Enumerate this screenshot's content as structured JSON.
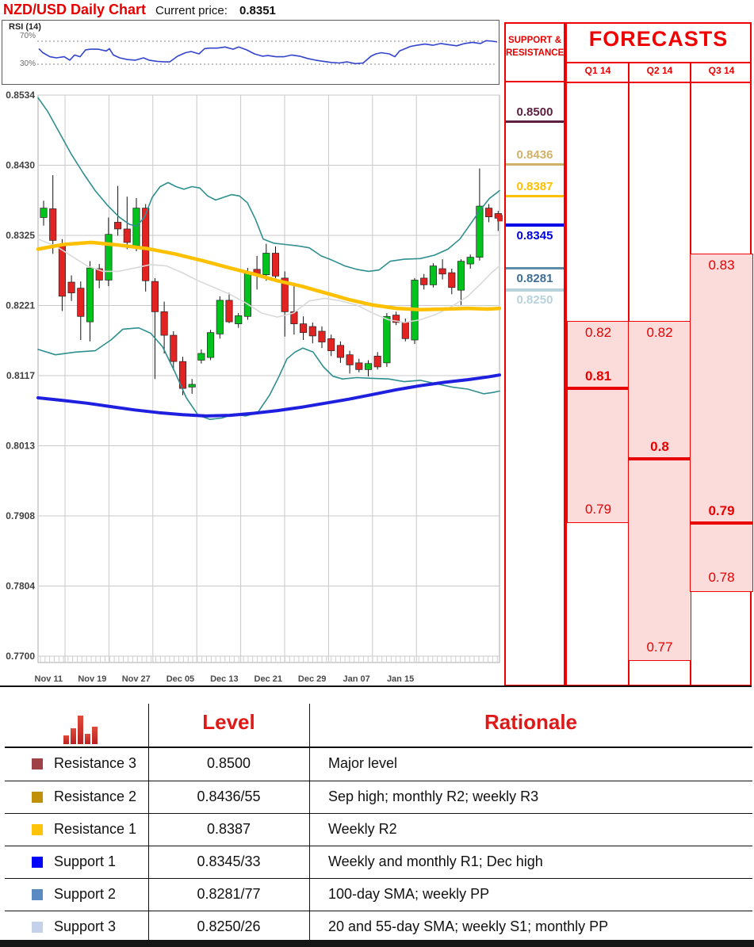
{
  "header": {
    "title": "NZD/USD Daily Chart",
    "current_price_label": "Current price:",
    "current_price": "0.8351"
  },
  "rsi_panel": {
    "label": "RSI (14)",
    "upper": "70%",
    "lower": "30%"
  },
  "support_resistance": {
    "header_line1": "SUPPORT &",
    "header_line2": "RESISTANCE",
    "levels": [
      {
        "value": "0.8500",
        "price": 0.85,
        "color": "#5c2040",
        "side": "resistance"
      },
      {
        "value": "0.8436",
        "price": 0.8436,
        "color": "#d0b169",
        "side": "resistance"
      },
      {
        "value": "0.8387",
        "price": 0.8387,
        "color": "#ffc000",
        "side": "resistance"
      },
      {
        "value": "0.8345",
        "price": 0.8345,
        "color": "#0000e6",
        "side": "support"
      },
      {
        "value": "0.8281",
        "price": 0.8281,
        "color": "#4f7ca8",
        "side": "support"
      },
      {
        "value": "0.8250",
        "price": 0.825,
        "color": "#b7d2da",
        "side": "support"
      }
    ]
  },
  "forecasts": {
    "title": "FORECASTS",
    "columns": [
      {
        "label": "Q1 14",
        "high_label": "0.82",
        "point_label": "0.81",
        "low_label": "0.79",
        "high": 0.82,
        "point": 0.81,
        "low": 0.79
      },
      {
        "label": "Q2 14",
        "high_label": "0.82",
        "point_label": "0.8",
        "low_label": "0.77",
        "high": 0.82,
        "point": 0.8,
        "low": 0.77
      },
      {
        "label": "Q3 14",
        "high_label": "0.83",
        "point_label": "0.79",
        "low_label": "0.78",
        "high": 0.83,
        "point": 0.79,
        "low": 0.78
      }
    ]
  },
  "table": {
    "level_header": "Level",
    "rationale_header": "Rationale",
    "rows": [
      {
        "swatch": "#9e4247",
        "label": "Resistance 3",
        "level": "0.8500",
        "rationale": "Major level"
      },
      {
        "swatch": "#c09008",
        "label": "Resistance 2",
        "level": "0.8436/55",
        "rationale": "Sep high; monthly R2; weekly R3"
      },
      {
        "swatch": "#ffc40a",
        "label": "Resistance 1",
        "level": "0.8387",
        "rationale": "Weekly R2"
      },
      {
        "swatch": "#0000ff",
        "label": "Support 1",
        "level": "0.8345/33",
        "rationale": "Weekly  and monthly R1; Dec high"
      },
      {
        "swatch": "#5b8ac2",
        "label": "Support 2",
        "level": "0.8281/77",
        "rationale": "100-day SMA; weekly PP"
      },
      {
        "swatch": "#c3d2ea",
        "label": "Support 3",
        "level": "0.8250/26",
        "rationale": "20 and 55-day SMA; weekly S1; monthly PP"
      }
    ]
  },
  "chart_data": {
    "type": "candlestick",
    "title": "NZD/USD Daily Chart",
    "current_price": 0.8351,
    "ylim": [
      0.77,
      0.8534
    ],
    "grid": true,
    "y_ticks": [
      "0.8534",
      "0.8430",
      "0.8325",
      "0.8221",
      "0.8117",
      "0.8013",
      "0.7908",
      "0.7804",
      "0.7700"
    ],
    "x_ticks": [
      "Nov 11",
      "Nov 19",
      "Nov 27",
      "Dec 05",
      "Dec 13",
      "Dec 21",
      "Dec 29",
      "Jan 07",
      "Jan 15"
    ],
    "colors": {
      "up": "#00c41d",
      "down": "#e32222",
      "band": "#2f8f8f",
      "ma_orange": "#ffc000",
      "ma_gray": "#d9d9d9",
      "ma_blue": "#1f1fe0"
    },
    "candles": [
      [
        0.8352,
        0.8377,
        0.834,
        0.8366
      ],
      [
        0.8365,
        0.8415,
        0.8298,
        0.8318
      ],
      [
        0.8312,
        0.832,
        0.8213,
        0.8235
      ],
      [
        0.8256,
        0.8266,
        0.8228,
        0.824
      ],
      [
        0.8247,
        0.8257,
        0.817,
        0.8205
      ],
      [
        0.8197,
        0.8287,
        0.8168,
        0.8277
      ],
      [
        0.8276,
        0.8283,
        0.8247,
        0.8259
      ],
      [
        0.8259,
        0.8352,
        0.825,
        0.8327
      ],
      [
        0.8345,
        0.8399,
        0.8325,
        0.8335
      ],
      [
        0.8335,
        0.8383,
        0.8305,
        0.8315
      ],
      [
        0.831,
        0.8381,
        0.8302,
        0.8366
      ],
      [
        0.8366,
        0.8372,
        0.8242,
        0.8258
      ],
      [
        0.8257,
        0.8262,
        0.8112,
        0.8212
      ],
      [
        0.8212,
        0.8227,
        0.815,
        0.8177
      ],
      [
        0.8177,
        0.8183,
        0.8125,
        0.8138
      ],
      [
        0.8138,
        0.8145,
        0.8088,
        0.8098
      ],
      [
        0.81,
        0.8112,
        0.809,
        0.8104
      ],
      [
        0.814,
        0.8156,
        0.8135,
        0.815
      ],
      [
        0.8144,
        0.8185,
        0.814,
        0.8181
      ],
      [
        0.8179,
        0.8235,
        0.8172,
        0.8229
      ],
      [
        0.8229,
        0.824,
        0.8195,
        0.8197
      ],
      [
        0.8194,
        0.821,
        0.8188,
        0.8206
      ],
      [
        0.8205,
        0.8277,
        0.82,
        0.8269
      ],
      [
        0.8275,
        0.8295,
        0.8245,
        0.8267
      ],
      [
        0.8267,
        0.8313,
        0.8258,
        0.8299
      ],
      [
        0.8299,
        0.8309,
        0.8262,
        0.8265
      ],
      [
        0.8262,
        0.8272,
        0.8175,
        0.8212
      ],
      [
        0.8212,
        0.825,
        0.8178,
        0.8194
      ],
      [
        0.8194,
        0.8205,
        0.817,
        0.8181
      ],
      [
        0.819,
        0.8196,
        0.8165,
        0.8176
      ],
      [
        0.8183,
        0.819,
        0.8158,
        0.8167
      ],
      [
        0.8172,
        0.8178,
        0.8146,
        0.8154
      ],
      [
        0.8162,
        0.8168,
        0.8136,
        0.8144
      ],
      [
        0.8148,
        0.8154,
        0.812,
        0.8133
      ],
      [
        0.8136,
        0.8142,
        0.8122,
        0.8126
      ],
      [
        0.8126,
        0.814,
        0.8116,
        0.8135
      ],
      [
        0.8146,
        0.8152,
        0.8126,
        0.813
      ],
      [
        0.8136,
        0.821,
        0.813,
        0.8205
      ],
      [
        0.8207,
        0.8212,
        0.8192,
        0.8196
      ],
      [
        0.8196,
        0.8202,
        0.8168,
        0.8172
      ],
      [
        0.817,
        0.8262,
        0.8164,
        0.8259
      ],
      [
        0.8262,
        0.8268,
        0.8245,
        0.8252
      ],
      [
        0.8252,
        0.8284,
        0.8248,
        0.828
      ],
      [
        0.8276,
        0.829,
        0.826,
        0.8268
      ],
      [
        0.827,
        0.8276,
        0.8238,
        0.8248
      ],
      [
        0.8244,
        0.829,
        0.8222,
        0.8287
      ],
      [
        0.8283,
        0.8297,
        0.8276,
        0.8293
      ],
      [
        0.8293,
        0.8425,
        0.8288,
        0.8369
      ],
      [
        0.8366,
        0.8372,
        0.8345,
        0.8353
      ],
      [
        0.8358,
        0.8362,
        0.8332,
        0.8351
      ]
    ],
    "overlays": {
      "ma_blue": [
        [
          48,
          0.8084
        ],
        [
          80,
          0.808
        ],
        [
          110,
          0.8076
        ],
        [
          140,
          0.8071
        ],
        [
          170,
          0.8066
        ],
        [
          200,
          0.8062
        ],
        [
          230,
          0.8059
        ],
        [
          260,
          0.8057
        ],
        [
          290,
          0.8058
        ],
        [
          320,
          0.8061
        ],
        [
          350,
          0.8065
        ],
        [
          380,
          0.807
        ],
        [
          410,
          0.8076
        ],
        [
          440,
          0.8082
        ],
        [
          470,
          0.8089
        ],
        [
          500,
          0.8096
        ],
        [
          530,
          0.8102
        ],
        [
          560,
          0.8107
        ],
        [
          590,
          0.8111
        ],
        [
          615,
          0.8115
        ],
        [
          630,
          0.8118
        ]
      ],
      "upper_band": [
        [
          48,
          0.853
        ],
        [
          60,
          0.851
        ],
        [
          75,
          0.8478
        ],
        [
          90,
          0.8446
        ],
        [
          105,
          0.8418
        ],
        [
          120,
          0.8392
        ],
        [
          135,
          0.8371
        ],
        [
          150,
          0.8353
        ],
        [
          163,
          0.8342
        ],
        [
          172,
          0.8339
        ],
        [
          182,
          0.8352
        ],
        [
          192,
          0.8382
        ],
        [
          202,
          0.8398
        ],
        [
          212,
          0.8404
        ],
        [
          222,
          0.8398
        ],
        [
          232,
          0.8394
        ],
        [
          242,
          0.8398
        ],
        [
          252,
          0.8396
        ],
        [
          262,
          0.8384
        ],
        [
          272,
          0.8378
        ],
        [
          282,
          0.8382
        ],
        [
          292,
          0.8386
        ],
        [
          302,
          0.8384
        ],
        [
          312,
          0.8374
        ],
        [
          322,
          0.835
        ],
        [
          332,
          0.832
        ],
        [
          345,
          0.8314
        ],
        [
          360,
          0.8312
        ],
        [
          375,
          0.831
        ],
        [
          390,
          0.8307
        ],
        [
          405,
          0.8295
        ],
        [
          420,
          0.8288
        ],
        [
          435,
          0.828
        ],
        [
          450,
          0.8275
        ],
        [
          465,
          0.8272
        ],
        [
          478,
          0.8274
        ],
        [
          492,
          0.8287
        ],
        [
          510,
          0.829
        ],
        [
          530,
          0.8291
        ],
        [
          548,
          0.8296
        ],
        [
          565,
          0.8305
        ],
        [
          580,
          0.832
        ],
        [
          592,
          0.834
        ],
        [
          605,
          0.8362
        ],
        [
          617,
          0.838
        ],
        [
          630,
          0.8392
        ]
      ],
      "lower_band": [
        [
          48,
          0.8156
        ],
        [
          70,
          0.8148
        ],
        [
          95,
          0.8152
        ],
        [
          120,
          0.8154
        ],
        [
          140,
          0.817
        ],
        [
          155,
          0.8186
        ],
        [
          175,
          0.8188
        ],
        [
          190,
          0.818
        ],
        [
          205,
          0.816
        ],
        [
          220,
          0.8124
        ],
        [
          235,
          0.8084
        ],
        [
          250,
          0.8058
        ],
        [
          265,
          0.8052
        ],
        [
          280,
          0.8054
        ],
        [
          295,
          0.806
        ],
        [
          310,
          0.8057
        ],
        [
          325,
          0.8062
        ],
        [
          340,
          0.8088
        ],
        [
          352,
          0.8116
        ],
        [
          362,
          0.8142
        ],
        [
          372,
          0.8152
        ],
        [
          382,
          0.8158
        ],
        [
          395,
          0.8152
        ],
        [
          408,
          0.813
        ],
        [
          420,
          0.8116
        ],
        [
          432,
          0.8112
        ],
        [
          450,
          0.8114
        ],
        [
          470,
          0.8113
        ],
        [
          490,
          0.8112
        ],
        [
          510,
          0.8108
        ],
        [
          530,
          0.811
        ],
        [
          550,
          0.8105
        ],
        [
          570,
          0.81
        ],
        [
          590,
          0.8097
        ],
        [
          610,
          0.809
        ],
        [
          622,
          0.8092
        ],
        [
          630,
          0.8094
        ]
      ],
      "ma_orange": [
        [
          48,
          0.8305
        ],
        [
          80,
          0.8312
        ],
        [
          115,
          0.8315
        ],
        [
          150,
          0.8311
        ],
        [
          185,
          0.8306
        ],
        [
          220,
          0.8298
        ],
        [
          255,
          0.8288
        ],
        [
          290,
          0.8277
        ],
        [
          320,
          0.8268
        ],
        [
          350,
          0.8258
        ],
        [
          380,
          0.825
        ],
        [
          410,
          0.824
        ],
        [
          440,
          0.823
        ],
        [
          470,
          0.8222
        ],
        [
          500,
          0.8217
        ],
        [
          530,
          0.8215
        ],
        [
          560,
          0.8216
        ],
        [
          590,
          0.8217
        ],
        [
          615,
          0.8216
        ],
        [
          630,
          0.8217
        ]
      ],
      "ma_gray": [
        [
          48,
          0.832
        ],
        [
          70,
          0.831
        ],
        [
          90,
          0.8295
        ],
        [
          110,
          0.828
        ],
        [
          130,
          0.8272
        ],
        [
          150,
          0.8272
        ],
        [
          170,
          0.8277
        ],
        [
          190,
          0.8282
        ],
        [
          210,
          0.828
        ],
        [
          230,
          0.827
        ],
        [
          250,
          0.8258
        ],
        [
          270,
          0.8248
        ],
        [
          290,
          0.8238
        ],
        [
          310,
          0.8225
        ],
        [
          330,
          0.821
        ],
        [
          350,
          0.8204
        ],
        [
          370,
          0.821
        ],
        [
          390,
          0.8228
        ],
        [
          410,
          0.8232
        ],
        [
          430,
          0.8228
        ],
        [
          450,
          0.8222
        ],
        [
          470,
          0.821
        ],
        [
          490,
          0.82
        ],
        [
          510,
          0.8196
        ],
        [
          530,
          0.82
        ],
        [
          550,
          0.8208
        ],
        [
          570,
          0.822
        ],
        [
          590,
          0.8235
        ],
        [
          605,
          0.8252
        ],
        [
          620,
          0.827
        ],
        [
          630,
          0.828
        ]
      ]
    },
    "rsi": {
      "label": "RSI (14)",
      "upper_line": 70,
      "lower_line": 30,
      "points": [
        [
          48,
          57
        ],
        [
          53,
          50
        ],
        [
          62,
          43
        ],
        [
          70,
          41
        ],
        [
          80,
          43
        ],
        [
          87,
          37
        ],
        [
          93,
          46
        ],
        [
          100,
          43
        ],
        [
          107,
          55
        ],
        [
          113,
          56
        ],
        [
          123,
          56
        ],
        [
          133,
          53
        ],
        [
          137,
          57
        ],
        [
          142,
          46
        ],
        [
          150,
          41
        ],
        [
          160,
          38
        ],
        [
          170,
          37
        ],
        [
          180,
          41
        ],
        [
          187,
          37
        ],
        [
          197,
          35
        ],
        [
          207,
          34
        ],
        [
          213,
          34
        ],
        [
          223,
          44
        ],
        [
          233,
          50
        ],
        [
          240,
          52
        ],
        [
          250,
          48
        ],
        [
          257,
          57
        ],
        [
          263,
          58
        ],
        [
          273,
          58
        ],
        [
          283,
          60
        ],
        [
          293,
          56
        ],
        [
          300,
          60
        ],
        [
          310,
          55
        ],
        [
          320,
          48
        ],
        [
          330,
          44
        ],
        [
          337,
          45
        ],
        [
          347,
          43
        ],
        [
          357,
          43
        ],
        [
          367,
          46
        ],
        [
          377,
          44
        ],
        [
          387,
          40
        ],
        [
          397,
          37
        ],
        [
          407,
          35
        ],
        [
          417,
          33
        ],
        [
          427,
          32
        ],
        [
          437,
          34
        ],
        [
          447,
          31
        ],
        [
          457,
          32
        ],
        [
          467,
          44
        ],
        [
          473,
          48
        ],
        [
          480,
          50
        ],
        [
          490,
          48
        ],
        [
          497,
          43
        ],
        [
          503,
          53
        ],
        [
          510,
          57
        ],
        [
          517,
          61
        ],
        [
          525,
          63
        ],
        [
          535,
          65
        ],
        [
          545,
          63
        ],
        [
          555,
          66
        ],
        [
          565,
          64
        ],
        [
          575,
          62
        ],
        [
          585,
          66
        ],
        [
          595,
          68
        ],
        [
          605,
          66
        ],
        [
          612,
          71
        ],
        [
          620,
          70
        ],
        [
          630,
          68
        ]
      ]
    }
  }
}
